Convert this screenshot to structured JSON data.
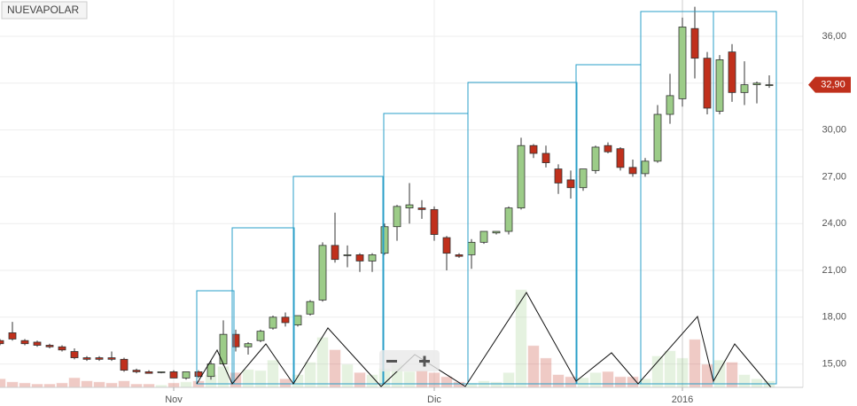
{
  "chart_data": {
    "type": "candlestick",
    "title": "NUEVAPOLAR",
    "categories": [
      null,
      null,
      null,
      null,
      null,
      null,
      null,
      null,
      null,
      null,
      null,
      null,
      null,
      null,
      "Nov",
      null,
      null,
      null,
      null,
      null,
      null,
      null,
      null,
      null,
      null,
      null,
      null,
      null,
      null,
      null,
      null,
      null,
      null,
      null,
      null,
      "Dic",
      null,
      null,
      null,
      null,
      null,
      null,
      null,
      null,
      null,
      null,
      null,
      null,
      null,
      null,
      null,
      null,
      null,
      null,
      null,
      "2016",
      null,
      null,
      null,
      null,
      null,
      null,
      null
    ],
    "open": [
      16.5,
      17.0,
      16.5,
      16.4,
      16.2,
      16.1,
      15.8,
      15.4,
      15.4,
      15.4,
      15.3,
      14.6,
      14.5,
      14.5,
      14.5,
      14.1,
      14.5,
      14.2,
      15.0,
      16.9,
      16.1,
      16.5,
      17.3,
      18.0,
      17.5,
      18.2,
      19.1,
      22.6,
      22.0,
      22.0,
      21.6,
      22.1,
      23.8,
      25.0,
      25.0,
      24.9,
      23.1,
      22.0,
      22.0,
      22.8,
      23.4,
      23.5,
      25.0,
      29.0,
      28.5,
      27.5,
      26.8,
      26.3,
      27.4,
      29.0,
      28.8,
      27.6,
      27.2,
      28.0,
      31.0,
      32.0,
      36.5,
      34.6,
      31.2,
      35.0,
      32.4,
      32.9,
      32.9
    ],
    "high": [
      16.6,
      17.7,
      16.6,
      16.5,
      16.3,
      16.2,
      16.0,
      15.5,
      15.5,
      15.8,
      15.4,
      14.7,
      14.6,
      14.5,
      14.6,
      14.5,
      14.6,
      15.2,
      17.8,
      17.2,
      16.4,
      17.2,
      18.1,
      18.3,
      18.1,
      19.1,
      22.8,
      24.7,
      22.6,
      22.1,
      22.1,
      24.0,
      25.2,
      26.6,
      25.5,
      25.1,
      23.2,
      22.1,
      23.0,
      23.5,
      23.5,
      25.1,
      29.5,
      29.1,
      29.0,
      27.8,
      27.4,
      27.5,
      29.0,
      29.2,
      28.9,
      28.1,
      28.2,
      31.6,
      33.6,
      37.2,
      37.9,
      35.0,
      34.8,
      35.5,
      34.4,
      33.1,
      33.5
    ],
    "low": [
      16.2,
      16.5,
      16.2,
      16.1,
      16.0,
      15.8,
      15.3,
      15.2,
      15.2,
      15.2,
      14.5,
      14.4,
      14.4,
      14.4,
      14.1,
      14.0,
      14.1,
      14.0,
      14.9,
      15.8,
      15.6,
      16.4,
      17.2,
      17.4,
      17.4,
      18.1,
      19.0,
      21.5,
      21.2,
      20.9,
      20.9,
      22.0,
      22.9,
      24.0,
      24.3,
      22.9,
      21.0,
      21.8,
      21.1,
      22.7,
      23.3,
      23.3,
      24.9,
      28.2,
      27.6,
      25.9,
      25.6,
      26.1,
      27.2,
      28.5,
      27.4,
      27.0,
      27.0,
      27.9,
      30.4,
      31.5,
      33.3,
      31.0,
      31.0,
      31.8,
      31.6,
      31.7,
      32.7
    ],
    "close": [
      16.3,
      16.6,
      16.3,
      16.2,
      16.1,
      15.9,
      15.4,
      15.3,
      15.3,
      15.3,
      14.6,
      14.5,
      14.4,
      14.5,
      14.1,
      14.5,
      14.2,
      15.0,
      16.9,
      16.1,
      16.3,
      17.1,
      18.0,
      17.65,
      18.1,
      19.0,
      22.6,
      21.7,
      22.0,
      21.6,
      22.0,
      23.8,
      25.1,
      25.2,
      24.9,
      23.3,
      22.1,
      21.9,
      22.8,
      23.5,
      23.5,
      25.0,
      29.0,
      28.5,
      27.9,
      26.6,
      26.3,
      27.5,
      28.9,
      28.6,
      27.6,
      27.2,
      28.0,
      31.0,
      32.2,
      36.6,
      34.6,
      31.4,
      34.5,
      32.4,
      32.9,
      33.0,
      32.9
    ],
    "volume": [
      8,
      5,
      4,
      3,
      3,
      4,
      9,
      6,
      5,
      4,
      6,
      3,
      3,
      2,
      4,
      5,
      6,
      12,
      20,
      14,
      17,
      16,
      26,
      8,
      12,
      24,
      48,
      36,
      22,
      14,
      12,
      18,
      22,
      15,
      16,
      14,
      10,
      5,
      4,
      6,
      5,
      14,
      94,
      40,
      28,
      12,
      10,
      9,
      14,
      15,
      10,
      10,
      8,
      30,
      35,
      28,
      46,
      22,
      26,
      24,
      12,
      8,
      6
    ],
    "volume_ylim": [
      0,
      100
    ],
    "up_color": "#9ccc88",
    "down_color": "#c0301c",
    "ylim": [
      13.5,
      38.33
    ],
    "yticks": [
      {
        "value": 15,
        "label": "15,00"
      },
      {
        "value": 18,
        "label": "18,00"
      },
      {
        "value": 21,
        "label": "21,00"
      },
      {
        "value": 24,
        "label": "24,00"
      },
      {
        "value": 27,
        "label": "27,00"
      },
      {
        "value": 30,
        "label": "30,00"
      },
      {
        "value": 33,
        "label": "33,00"
      },
      {
        "value": 36,
        "label": "36,00"
      }
    ],
    "current_price": {
      "value": 32.9,
      "label": "32,90"
    },
    "grid": true
  }
}
